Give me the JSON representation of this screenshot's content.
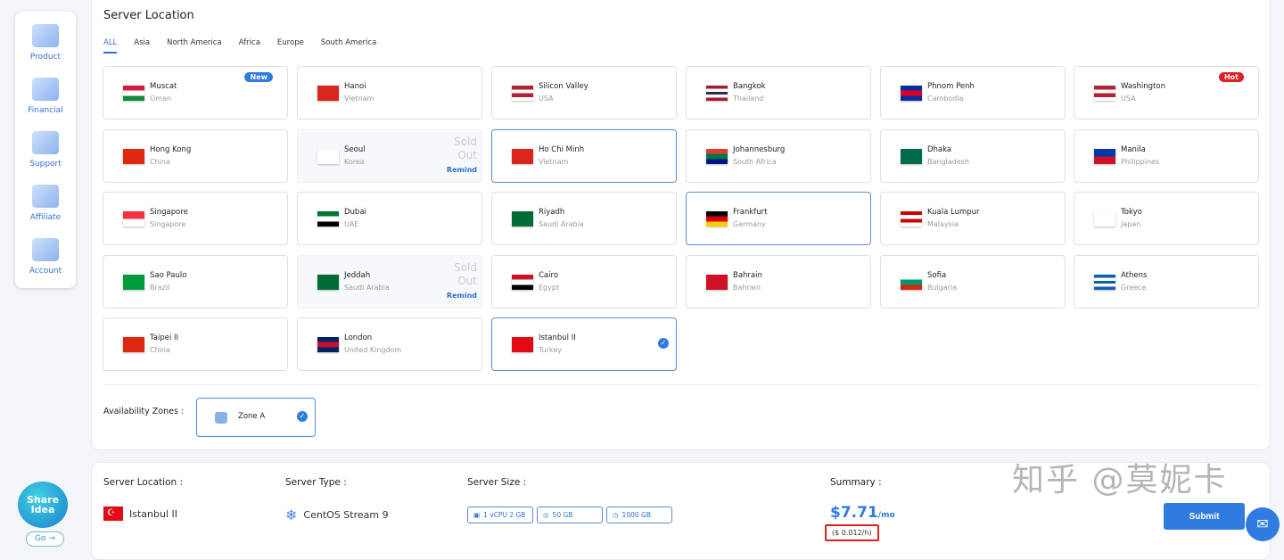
{
  "sidebar": {
    "items": [
      {
        "label": "Product"
      },
      {
        "label": "Financial"
      },
      {
        "label": "Support"
      },
      {
        "label": "Affiliate"
      },
      {
        "label": "Account"
      }
    ]
  },
  "server_location": {
    "title": "Server Location",
    "tabs": [
      "ALL",
      "Asia",
      "North America",
      "Africa",
      "Europe",
      "South America"
    ],
    "active_tab": "ALL",
    "sold_out_label": "Sold Out",
    "remind_label": "Remind",
    "locations": [
      {
        "city": "Muscat",
        "country": "Oman",
        "badge": "New",
        "badge_color": "#2f7be0",
        "flag": [
          "#d81c3f",
          "#fff",
          "#118a3a"
        ]
      },
      {
        "city": "Hanoi",
        "country": "Vietnam",
        "flag": [
          "#da251d"
        ]
      },
      {
        "city": "Silicon Valley",
        "country": "USA",
        "flag": [
          "#b22234",
          "#fff",
          "#b22234",
          "#fff"
        ]
      },
      {
        "city": "Bangkok",
        "country": "Thailand",
        "flag": [
          "#a51931",
          "#fff",
          "#2d2a4a",
          "#fff",
          "#a51931"
        ]
      },
      {
        "city": "Phnom Penh",
        "country": "Cambodia",
        "flag": [
          "#032ea1",
          "#e00025",
          "#032ea1"
        ]
      },
      {
        "city": "Washington",
        "country": "USA",
        "badge": "Hot",
        "badge_color": "#e02020",
        "flag": [
          "#b22234",
          "#fff",
          "#b22234",
          "#fff"
        ]
      },
      {
        "city": "Hong Kong",
        "country": "China",
        "flag": [
          "#de2910"
        ]
      },
      {
        "city": "Seoul",
        "country": "Korea",
        "sold_out": true,
        "flag": [
          "#fff"
        ]
      },
      {
        "city": "Ho Chi Minh",
        "country": "Vietnam",
        "flag": [
          "#da251d"
        ],
        "hover": true
      },
      {
        "city": "Johannesburg",
        "country": "South Africa",
        "flag": [
          "#e03c31",
          "#007749",
          "#001489"
        ]
      },
      {
        "city": "Dhaka",
        "country": "Bangladesh",
        "flag": [
          "#006a4e"
        ]
      },
      {
        "city": "Manila",
        "country": "Philippines",
        "flag": [
          "#0038a8",
          "#ce1126"
        ]
      },
      {
        "city": "Singapore",
        "country": "Singapore",
        "flag": [
          "#ef3340",
          "#fff"
        ]
      },
      {
        "city": "Dubai",
        "country": "UAE",
        "flag": [
          "#00732f",
          "#fff",
          "#000"
        ]
      },
      {
        "city": "Riyadh",
        "country": "Saudi Arabia",
        "flag": [
          "#006c35"
        ]
      },
      {
        "city": "Frankfurt",
        "country": "Germany",
        "flag": [
          "#000",
          "#dd0000",
          "#ffce00"
        ],
        "hover": true
      },
      {
        "city": "Kuala Lumpur",
        "country": "Malaysia",
        "flag": [
          "#cc0001",
          "#fff",
          "#cc0001",
          "#fff"
        ]
      },
      {
        "city": "Tokyo",
        "country": "Japan",
        "flag": [
          "#fff"
        ]
      },
      {
        "city": "Sao Paulo",
        "country": "Brazil",
        "flag": [
          "#009c3b"
        ]
      },
      {
        "city": "Jeddah",
        "country": "Saudi Arabia",
        "sold_out": true,
        "flag": [
          "#006c35"
        ]
      },
      {
        "city": "Cairo",
        "country": "Egypt",
        "flag": [
          "#ce1126",
          "#fff",
          "#000"
        ]
      },
      {
        "city": "Bahrain",
        "country": "Bahrain",
        "flag": [
          "#ce1126"
        ]
      },
      {
        "city": "Sofia",
        "country": "Bulgaria",
        "flag": [
          "#fff",
          "#00966e",
          "#d62612"
        ]
      },
      {
        "city": "Athens",
        "country": "Greece",
        "flag": [
          "#0d5eaf",
          "#fff",
          "#0d5eaf",
          "#fff",
          "#0d5eaf"
        ]
      },
      {
        "city": "Taipei II",
        "country": "China",
        "flag": [
          "#de2910"
        ]
      },
      {
        "city": "London",
        "country": "United Kingdom",
        "flag": [
          "#012169",
          "#c8102e",
          "#012169"
        ]
      },
      {
        "city": "Istanbul II",
        "country": "Turkey",
        "selected": true,
        "flag": [
          "#e30a17"
        ]
      }
    ]
  },
  "availability": {
    "label": "Availability Zones :",
    "zone": "Zone A"
  },
  "summary_bar": {
    "location_label": "Server Location :",
    "location_value": "Istanbul II",
    "type_label": "Server Type :",
    "type_value": "CentOS Stream 9",
    "size_label": "Server Size :",
    "sizes": [
      "1 vCPU 2 GB",
      "50 GB",
      "1000 GB"
    ],
    "summary_label": "Summary :",
    "price": "$7.71",
    "per": "/mo",
    "hourly": "($ 0.012/h)",
    "submit": "Submit"
  },
  "share": {
    "label": "Share Idea",
    "go": "Go →"
  },
  "watermark": "知乎 @莫妮卡",
  "accent": "#2f7be0"
}
